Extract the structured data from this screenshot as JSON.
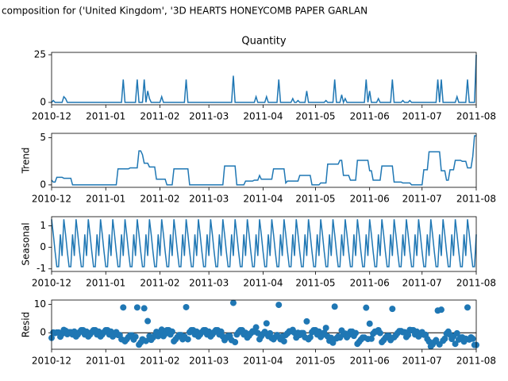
{
  "title": "composition for ('United Kingdom', '3D HEARTS  HONEYCOMB PAPER GARLAN",
  "chart_data": [
    {
      "type": "line",
      "title": "Quantity",
      "color": "#1f77b4",
      "xlim": [
        0,
        243
      ],
      "xticks": [
        {
          "value": 0,
          "label": "2010-12"
        },
        {
          "value": 31,
          "label": "2011-01"
        },
        {
          "value": 62,
          "label": "2011-02"
        },
        {
          "value": 90,
          "label": "2011-03"
        },
        {
          "value": 121,
          "label": "2011-04"
        },
        {
          "value": 151,
          "label": "2011-05"
        },
        {
          "value": 182,
          "label": "2011-06"
        },
        {
          "value": 212,
          "label": "2011-07"
        },
        {
          "value": 243,
          "label": "2011-08"
        }
      ],
      "ylim": [
        -1.25,
        26.25
      ],
      "yticks": [
        0,
        25
      ],
      "values": [
        0,
        1,
        0,
        0,
        0,
        0,
        0,
        3,
        2,
        0,
        0,
        0,
        0,
        0,
        0,
        0,
        0,
        0,
        0,
        0,
        0,
        0,
        0,
        0,
        0,
        0,
        0,
        0,
        0,
        0,
        0,
        0,
        0,
        0,
        0,
        0,
        0,
        0,
        0,
        0,
        0,
        12,
        0,
        0,
        0,
        0,
        0,
        0,
        0,
        12,
        0,
        0,
        0,
        12,
        0,
        6,
        2,
        0,
        0,
        0,
        0,
        0,
        0,
        3,
        0,
        0,
        0,
        0,
        0,
        0,
        0,
        0,
        0,
        0,
        0,
        0,
        0,
        12,
        0,
        0,
        0,
        0,
        0,
        0,
        0,
        0,
        0,
        0,
        0,
        0,
        0,
        0,
        0,
        0,
        0,
        0,
        0,
        0,
        0,
        0,
        0,
        0,
        0,
        0,
        14,
        0,
        0,
        0,
        0,
        0,
        0,
        0,
        0,
        0,
        0,
        0,
        0,
        3,
        0,
        0,
        0,
        0,
        0,
        3,
        0,
        0,
        0,
        0,
        0,
        0,
        12,
        0,
        0,
        0,
        0,
        0,
        0,
        0,
        2,
        0,
        0,
        1,
        0,
        0,
        0,
        0,
        6,
        0,
        0,
        0,
        0,
        0,
        0,
        0,
        0,
        0,
        0,
        1,
        0,
        0,
        0,
        0,
        12,
        0,
        0,
        0,
        4,
        0,
        2,
        0,
        0,
        0,
        0,
        0,
        0,
        0,
        0,
        0,
        0,
        0,
        12,
        0,
        6,
        0,
        0,
        0,
        0,
        2,
        0,
        0,
        0,
        0,
        0,
        0,
        0,
        12,
        0,
        0,
        0,
        0,
        0,
        1,
        0,
        0,
        0,
        1,
        0,
        0,
        0,
        0,
        0,
        0,
        0,
        0,
        0,
        0,
        0,
        0,
        0,
        0,
        0,
        12,
        0,
        12,
        0,
        0,
        0,
        0,
        0,
        0,
        0,
        0,
        3,
        0,
        0,
        0,
        0,
        0,
        12,
        0,
        0,
        0,
        0,
        25
      ]
    },
    {
      "type": "line",
      "ylabel": "Trend",
      "color": "#1f77b4",
      "xlim": [
        0,
        243
      ],
      "xticks": [
        {
          "value": 0,
          "label": "2010-12"
        },
        {
          "value": 31,
          "label": "2011-01"
        },
        {
          "value": 62,
          "label": "2011-02"
        },
        {
          "value": 90,
          "label": "2011-03"
        },
        {
          "value": 121,
          "label": "2011-04"
        },
        {
          "value": 151,
          "label": "2011-05"
        },
        {
          "value": 182,
          "label": "2011-06"
        },
        {
          "value": 212,
          "label": "2011-07"
        },
        {
          "value": 243,
          "label": "2011-08"
        }
      ],
      "ylim": [
        -0.26,
        5.46
      ],
      "yticks": [
        0,
        5
      ],
      "values": [
        0.5,
        0.3,
        0.3,
        0.8,
        0.8,
        0.8,
        0.8,
        0.7,
        0.7,
        0.7,
        0.7,
        0.7,
        0,
        0,
        0,
        0,
        0,
        0,
        0,
        0,
        0,
        0,
        0,
        0,
        0,
        0,
        0,
        0,
        0,
        0,
        0,
        0,
        0,
        0,
        0,
        0,
        0,
        0,
        1.7,
        1.7,
        1.7,
        1.7,
        1.7,
        1.7,
        1.7,
        1.8,
        1.8,
        1.8,
        1.8,
        1.8,
        3.6,
        3.6,
        3.2,
        2.3,
        2.3,
        2.3,
        1.9,
        1.9,
        1.9,
        1.9,
        0.6,
        0.6,
        0.6,
        0.6,
        0.6,
        0.6,
        0,
        0,
        0,
        0,
        1.7,
        1.7,
        1.7,
        1.7,
        1.7,
        1.7,
        1.7,
        1.7,
        1.7,
        0,
        0,
        0,
        0,
        0,
        0,
        0,
        0,
        0,
        0,
        0,
        0,
        0,
        0,
        0,
        0,
        0,
        0,
        0,
        0,
        2,
        2,
        2,
        2,
        2,
        2,
        2,
        0,
        0,
        0,
        0,
        0,
        0.4,
        0.4,
        0.4,
        0.4,
        0.4,
        0.5,
        0.5,
        0.5,
        1.0,
        0.6,
        0.6,
        0.6,
        0.6,
        0.6,
        0.6,
        0.6,
        1.7,
        1.7,
        1.7,
        1.7,
        1.7,
        1.7,
        1.7,
        0.2,
        0.4,
        0.4,
        0.4,
        0.4,
        0.4,
        0.4,
        0.4,
        1,
        1,
        1,
        1,
        1,
        1,
        1,
        0,
        0,
        0,
        0,
        0,
        0.2,
        0.2,
        0.2,
        0.2,
        2.2,
        2.2,
        2.2,
        2.2,
        2.2,
        2.2,
        2.2,
        2.6,
        2.6,
        1,
        1,
        1,
        1,
        0.5,
        0.5,
        0.5,
        0.5,
        2.6,
        2.6,
        2.6,
        2.6,
        2.6,
        2.6,
        2.6,
        1.5,
        1.5,
        0.5,
        0.5,
        0.5,
        0.5,
        0.5,
        2,
        2,
        2,
        2,
        2,
        2,
        2,
        0.3,
        0.3,
        0.3,
        0.3,
        0.3,
        0.2,
        0.2,
        0.2,
        0.2,
        0.2,
        0,
        0,
        0,
        0,
        0,
        0,
        0,
        1.6,
        1.6,
        1.6,
        3.5,
        3.5,
        3.5,
        3.5,
        3.5,
        3.5,
        3.5,
        1.5,
        1.5,
        1.5,
        0.5,
        0.5,
        1.6,
        1.6,
        1.6,
        2.6,
        2.6,
        2.6,
        2.6,
        2.5,
        2.5,
        2.5,
        1.8,
        1.8,
        1.8,
        3,
        5.2,
        5.2
      ]
    },
    {
      "type": "line",
      "ylabel": "Seasonal",
      "color": "#1f77b4",
      "xlim": [
        0,
        243
      ],
      "xticks": [
        {
          "value": 0,
          "label": "2010-12"
        },
        {
          "value": 31,
          "label": "2011-01"
        },
        {
          "value": 62,
          "label": "2011-02"
        },
        {
          "value": 90,
          "label": "2011-03"
        },
        {
          "value": 121,
          "label": "2011-04"
        },
        {
          "value": 151,
          "label": "2011-05"
        },
        {
          "value": 182,
          "label": "2011-06"
        },
        {
          "value": 212,
          "label": "2011-07"
        },
        {
          "value": 243,
          "label": "2011-08"
        }
      ],
      "ylim": [
        -1.12,
        1.42
      ],
      "yticks": [
        -1,
        0,
        1
      ],
      "values": [
        1.3,
        0.6,
        -0.2,
        -0.9,
        -0.9,
        0.6,
        -0.4,
        1.3,
        0.6,
        -0.2,
        -0.9,
        -0.9,
        0.6,
        -0.4,
        1.3,
        0.6,
        -0.2,
        -0.9,
        -0.9,
        0.6,
        -0.4,
        1.3,
        0.6,
        -0.2,
        -0.9,
        -0.9,
        0.6,
        -0.4,
        1.3,
        0.6,
        -0.2,
        -0.9,
        -0.9,
        0.6,
        -0.4,
        1.3,
        0.6,
        -0.2,
        -0.9,
        -0.9,
        0.6,
        -0.4,
        1.3,
        0.6,
        -0.2,
        -0.9,
        -0.9,
        0.6,
        -0.4,
        1.3,
        0.6,
        -0.2,
        -0.9,
        -0.9,
        0.6,
        -0.4,
        1.3,
        0.6,
        -0.2,
        -0.9,
        -0.9,
        0.6,
        -0.4,
        1.3,
        0.6,
        -0.2,
        -0.9,
        -0.9,
        0.6,
        -0.4,
        1.3,
        0.6,
        -0.2,
        -0.9,
        -0.9,
        0.6,
        -0.4,
        1.3,
        0.6,
        -0.2,
        -0.9,
        -0.9,
        0.6,
        -0.4,
        1.3,
        0.6,
        -0.2,
        -0.9,
        -0.9,
        0.6,
        -0.4,
        1.3,
        0.6,
        -0.2,
        -0.9,
        -0.9,
        0.6,
        -0.4,
        1.3,
        0.6,
        -0.2,
        -0.9,
        -0.9,
        0.6,
        -0.4,
        1.3,
        0.6,
        -0.2,
        -0.9,
        -0.9,
        0.6,
        -0.4,
        1.3,
        0.6,
        -0.2,
        -0.9,
        -0.9,
        0.6,
        -0.4,
        1.3,
        0.6,
        -0.2,
        -0.9,
        -0.9,
        0.6,
        -0.4,
        1.3,
        0.6,
        -0.2,
        -0.9,
        -0.9,
        0.6,
        -0.4,
        1.3,
        0.6,
        -0.2,
        -0.9,
        -0.9,
        0.6,
        -0.4,
        1.3,
        0.6,
        -0.2,
        -0.9,
        -0.9,
        0.6,
        -0.4,
        1.3,
        0.6,
        -0.2,
        -0.9,
        -0.9,
        0.6,
        -0.4,
        1.3,
        0.6,
        -0.2,
        -0.9,
        -0.9,
        0.6,
        -0.4,
        1.3,
        0.6,
        -0.2,
        -0.9,
        -0.9,
        0.6,
        -0.4,
        1.3,
        0.6,
        -0.2,
        -0.9,
        -0.9,
        0.6,
        -0.4,
        1.3,
        0.6,
        -0.2,
        -0.9,
        -0.9,
        0.6,
        -0.4,
        1.3,
        0.6,
        -0.2,
        -0.9,
        -0.9,
        0.6,
        -0.4,
        1.3,
        0.6,
        -0.2,
        -0.9,
        -0.9,
        0.6,
        -0.4,
        1.3,
        0.6,
        -0.2,
        -0.9,
        -0.9,
        0.6,
        -0.4,
        1.3,
        0.6,
        -0.2,
        -0.9,
        -0.9,
        0.6,
        -0.4,
        1.3,
        0.6,
        -0.2,
        -0.9,
        -0.9,
        0.6,
        -0.4,
        1.3,
        0.6,
        -0.2,
        -0.9,
        -0.9,
        0.6,
        -0.4,
        1.3,
        0.6,
        -0.2,
        -0.9,
        -0.9,
        0.6,
        -0.4,
        1.3,
        0.6,
        -0.2,
        -0.9,
        -0.9,
        0.6,
        -0.4,
        1.3,
        0.6,
        -0.2,
        -0.9,
        -0.9,
        0.6
      ]
    },
    {
      "type": "scatter",
      "ylabel": "Resid",
      "color": "#1f77b4",
      "zero_line": true,
      "xlim": [
        0,
        243
      ],
      "xticks": [
        {
          "value": 0,
          "label": "2010-12"
        },
        {
          "value": 31,
          "label": "2011-01"
        },
        {
          "value": 62,
          "label": "2011-02"
        },
        {
          "value": 90,
          "label": "2011-03"
        },
        {
          "value": 121,
          "label": "2011-04"
        },
        {
          "value": 151,
          "label": "2011-05"
        },
        {
          "value": 182,
          "label": "2011-06"
        },
        {
          "value": 212,
          "label": "2011-07"
        },
        {
          "value": 243,
          "label": "2011-08"
        }
      ],
      "ylim": [
        -5.8,
        11.5
      ],
      "yticks": [
        0,
        10
      ],
      "values": [
        -1.8,
        0.1,
        -0.1,
        0.1,
        0.1,
        -1.4,
        -0.4,
        1.0,
        0.7,
        -0.5,
        0.2,
        0.2,
        -0.6,
        0.4,
        -1.3,
        -0.6,
        0.2,
        0.9,
        0.9,
        -0.6,
        0.4,
        -1.3,
        -0.6,
        0.2,
        0.9,
        0.9,
        -0.6,
        0.4,
        -1.3,
        -0.6,
        0.2,
        0.9,
        0.9,
        -0.6,
        0.4,
        -1.3,
        -0.6,
        0.2,
        -0.8,
        -0.8,
        -2.3,
        8.9,
        -3.0,
        -2.3,
        -1.5,
        -0.9,
        -0.9,
        -2.4,
        -1.4,
        8.9,
        -4.2,
        -3.4,
        -2.3,
        8.6,
        -2.9,
        4.1,
        -1.2,
        -2.5,
        -1.7,
        -1.0,
        0.3,
        -1.2,
        -0.2,
        1.1,
        -1.2,
        -0.4,
        0.9,
        0.9,
        -0.6,
        0.4,
        -3.0,
        -2.3,
        -1.5,
        -0.8,
        -0.8,
        -2.3,
        -1.3,
        9.0,
        -2.3,
        0.2,
        0.9,
        0.9,
        -0.6,
        0.4,
        -1.3,
        -0.6,
        0.2,
        0.9,
        0.9,
        -0.6,
        0.4,
        -1.3,
        -0.6,
        0.2,
        0.9,
        0.9,
        -0.6,
        0.4,
        -1.3,
        -2.6,
        -1.8,
        -1.1,
        -1.1,
        -2.6,
        10.5,
        -3.3,
        -0.6,
        0.2,
        0.9,
        0.9,
        -0.6,
        0.0,
        -1.7,
        -1.0,
        -0.2,
        0.5,
        0.4,
        1.9,
        -0.1,
        -2.3,
        -1.2,
        -0.4,
        0.3,
        3.3,
        -1.2,
        -0.2,
        -1.9,
        -2.3,
        -1.5,
        -0.8,
        9.8,
        -2.3,
        -1.3,
        -3.0,
        -0.8,
        -0.2,
        0.5,
        0.5,
        1.0,
        0.0,
        -1.7,
        0.0,
        -0.8,
        -0.1,
        -0.1,
        -1.6,
        4.0,
        -2.3,
        -1.6,
        0.2,
        0.9,
        0.9,
        -0.6,
        0.4,
        -1.5,
        -0.8,
        0.0,
        1.7,
        -1.3,
        -2.8,
        -1.8,
        -3.5,
        9.2,
        -2.0,
        -1.3,
        -1.7,
        0.8,
        -0.6,
        -0.3,
        -1.6,
        -0.8,
        0.4,
        0.4,
        -1.1,
        -0.1,
        -3.9,
        -3.2,
        -2.4,
        -1.7,
        -1.7,
        8.8,
        -2.2,
        3.2,
        -2.1,
        -0.3,
        0.4,
        0.4,
        0.9,
        -0.1,
        -3.3,
        -2.6,
        -1.8,
        -1.1,
        -1.1,
        -2.6,
        8.4,
        -1.6,
        -0.9,
        -0.1,
        0.6,
        0.6,
        0.2,
        0.2,
        -1.5,
        -0.8,
        1.0,
        0.9,
        0.9,
        -0.6,
        0.4,
        -1.3,
        -0.6,
        0.2,
        -0.7,
        -0.7,
        -2.2,
        -3.1,
        -4.8,
        -4.1,
        -3.3,
        -2.6,
        7.8,
        -4.1,
        8.1,
        -2.8,
        -2.1,
        -0.3,
        0.4,
        -0.7,
        -2.2,
        -1.2,
        -3.9,
        -0.2,
        -2.4,
        -1.7,
        -1.6,
        -3.1,
        -2.1,
        8.9,
        -2.4,
        -1.6,
        -2.1,
        -4.3,
        -4.3
      ]
    }
  ]
}
